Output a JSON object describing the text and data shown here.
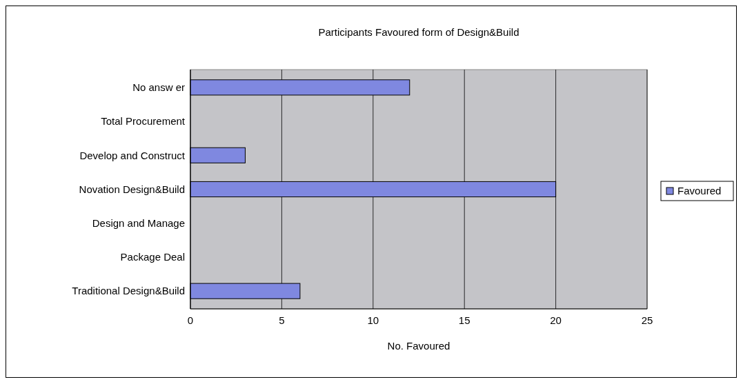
{
  "chart_data": {
    "type": "bar",
    "orientation": "horizontal",
    "title": "Participants Favoured form of Design&Build",
    "xlabel": "No. Favoured",
    "categories": [
      "No answ er",
      "Total Procurement",
      "Develop and Construct",
      "Novation Design&Build",
      "Design and Manage",
      "Package Deal",
      "Traditional Design&Build"
    ],
    "series": [
      {
        "name": "Favoured",
        "color": "#7f88e0",
        "values": [
          12,
          0,
          3,
          20,
          0,
          0,
          6
        ]
      }
    ],
    "xlim": [
      0,
      25
    ],
    "xticks": [
      0,
      5,
      10,
      15,
      20,
      25
    ],
    "grid": "x",
    "legend": "right"
  }
}
